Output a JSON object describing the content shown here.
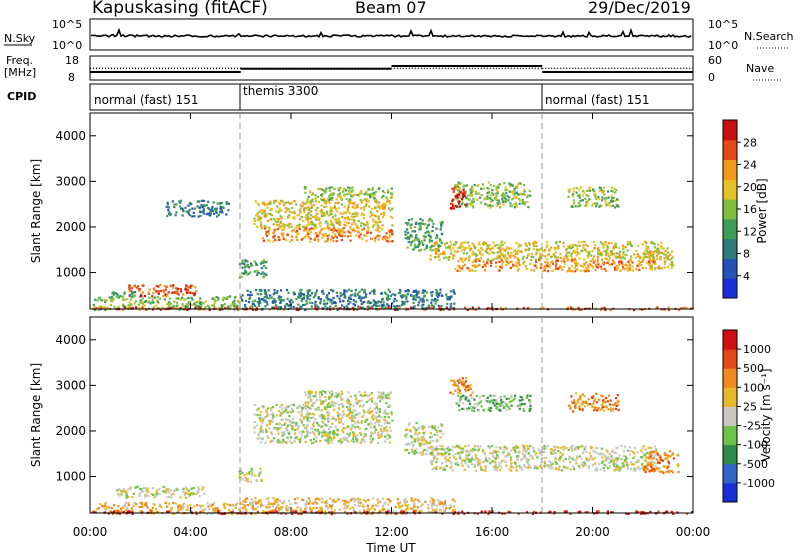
{
  "header": {
    "station": "Kapuskasing (fitACF)",
    "beam": "Beam 07",
    "date": "29/Dec/2019"
  },
  "noise_panel": {
    "left_label": "N.Sky",
    "right_label": "N.Search",
    "left_ticks": [
      "10^5",
      "10^0"
    ],
    "right_ticks": [
      "10^5",
      "10^0"
    ]
  },
  "freq_panel": {
    "left_label_1": "Freq.",
    "left_label_2": "[MHz]",
    "right_label": "Nave",
    "left_ticks": [
      "18",
      "8"
    ],
    "right_ticks": [
      "60",
      "0"
    ]
  },
  "cpid_panel": {
    "label": "CPID",
    "modes": [
      "normal (fast) 151",
      "themis 3300",
      "normal (fast) 151"
    ]
  },
  "power_panel": {
    "ylabel": "Slant Range [km]",
    "yticks": [
      "4000",
      "3000",
      "2000",
      "1000"
    ],
    "colorbar_label": "Power [dB]",
    "colorbar_ticks": [
      "28",
      "24",
      "20",
      "16",
      "12",
      "8",
      "4"
    ],
    "colors": [
      "#1a2ed6",
      "#2453b8",
      "#2f7c7a",
      "#3f9b55",
      "#7fc040",
      "#e6c229",
      "#f29a1e",
      "#e24a1a",
      "#c81010"
    ]
  },
  "velocity_panel": {
    "ylabel": "Slant Range [km]",
    "yticks": [
      "4000",
      "3000",
      "2000",
      "1000"
    ],
    "colorbar_label": "Velocity [m s⁻¹]",
    "colorbar_ticks": [
      "1000",
      "500",
      "100",
      "25",
      "-25",
      "-100",
      "-500",
      "-1000"
    ],
    "colors": [
      "#1a2ed6",
      "#2f66c8",
      "#2e8a4a",
      "#6cc34a",
      "#c8c8c0",
      "#e6b82a",
      "#f08a1e",
      "#e04a1a",
      "#d01010"
    ]
  },
  "xaxis": {
    "label": "Time UT",
    "ticks": [
      "00:00",
      "04:00",
      "08:00",
      "12:00",
      "16:00",
      "20:00",
      "00:00"
    ]
  },
  "chart_data": {
    "type": "heatmap",
    "title": "Kapuskasing (fitACF) Beam 07 29/Dec/2019",
    "xlabel": "Time UT",
    "ylabel": "Slant Range [km]",
    "xlim_hours": [
      0,
      24
    ],
    "ylim_km": [
      200,
      4500
    ],
    "mode_changes_hours": [
      6.0,
      18.0
    ],
    "power_regions": [
      {
        "t0": 0.1,
        "t1": 6.0,
        "r0": 200,
        "r1": 500,
        "level": 4
      },
      {
        "t0": 1.5,
        "t1": 4.2,
        "r0": 500,
        "r1": 750,
        "level": 7
      },
      {
        "t0": 0.8,
        "t1": 1.8,
        "r0": 480,
        "r1": 600,
        "level": 3
      },
      {
        "t0": 3.0,
        "t1": 5.5,
        "r0": 2250,
        "r1": 2600,
        "level": 2
      },
      {
        "t0": 5.9,
        "t1": 7.0,
        "r0": 900,
        "r1": 1300,
        "level": 3
      },
      {
        "t0": 6.0,
        "t1": 14.5,
        "r0": 200,
        "r1": 650,
        "level": 2
      },
      {
        "t0": 6.5,
        "t1": 12.0,
        "r0": 2000,
        "r1": 2600,
        "level": 5
      },
      {
        "t0": 6.8,
        "t1": 12.0,
        "r0": 1700,
        "r1": 2000,
        "level": 6
      },
      {
        "t0": 8.5,
        "t1": 12.0,
        "r0": 2600,
        "r1": 2900,
        "level": 4
      },
      {
        "t0": 12.5,
        "t1": 14.0,
        "r0": 1500,
        "r1": 2200,
        "level": 3
      },
      {
        "t0": 13.5,
        "t1": 23.0,
        "r0": 1300,
        "r1": 1700,
        "level": 5
      },
      {
        "t0": 14.5,
        "t1": 22.5,
        "r0": 1050,
        "r1": 1300,
        "level": 6
      },
      {
        "t0": 14.5,
        "t1": 17.5,
        "r0": 2450,
        "r1": 3000,
        "level": 4
      },
      {
        "t0": 14.3,
        "t1": 14.9,
        "r0": 2400,
        "r1": 2900,
        "level": 8
      },
      {
        "t0": 19.0,
        "t1": 21.0,
        "r0": 2450,
        "r1": 2900,
        "level": 4
      },
      {
        "t0": 22.0,
        "t1": 23.2,
        "r0": 1100,
        "r1": 1500,
        "level": 5
      },
      {
        "t0": 0.0,
        "t1": 24.0,
        "r0": 200,
        "r1": 260,
        "level": 7
      }
    ],
    "velocity_regions": [
      {
        "t0": 0.2,
        "t1": 6.0,
        "r0": 200,
        "r1": 450,
        "level": 5
      },
      {
        "t0": 1.0,
        "t1": 4.5,
        "r0": 550,
        "r1": 800,
        "level": 4
      },
      {
        "t0": 5.9,
        "t1": 6.8,
        "r0": 900,
        "r1": 1200,
        "level": 4
      },
      {
        "t0": 6.0,
        "t1": 14.5,
        "r0": 200,
        "r1": 550,
        "level": 5
      },
      {
        "t0": 6.5,
        "t1": 12.0,
        "r0": 1750,
        "r1": 2600,
        "level": 4
      },
      {
        "t0": 8.5,
        "t1": 12.0,
        "r0": 2600,
        "r1": 2900,
        "level": 4
      },
      {
        "t0": 12.5,
        "t1": 14.0,
        "r0": 1500,
        "r1": 2200,
        "level": 4
      },
      {
        "t0": 13.5,
        "t1": 22.5,
        "r0": 1150,
        "r1": 1700,
        "level": 4
      },
      {
        "t0": 14.5,
        "t1": 17.5,
        "r0": 2450,
        "r1": 2800,
        "level": 3
      },
      {
        "t0": 14.3,
        "t1": 15.2,
        "r0": 2800,
        "r1": 3200,
        "level": 6
      },
      {
        "t0": 19.0,
        "t1": 21.0,
        "r0": 2450,
        "r1": 2850,
        "level": 6
      },
      {
        "t0": 22.0,
        "t1": 23.4,
        "r0": 1100,
        "r1": 1600,
        "level": 6
      },
      {
        "t0": 0.0,
        "t1": 24.0,
        "r0": 200,
        "r1": 260,
        "level": 8
      }
    ],
    "noise_series": {
      "sky_level": 0.8,
      "search_level": 0.85
    },
    "freq_series": [
      {
        "name": "Freq.",
        "segments": [
          {
            "t0": 0,
            "t1": 6,
            "v": 12
          },
          {
            "t0": 6,
            "t1": 18,
            "v": 12
          },
          {
            "t0": 18,
            "t1": 24,
            "v": 12
          }
        ]
      },
      {
        "name": "Nave",
        "segments": [
          {
            "t0": 0,
            "t1": 6,
            "v": 20
          },
          {
            "t0": 6,
            "t1": 12,
            "v": 28
          },
          {
            "t0": 12,
            "t1": 18,
            "v": 35
          },
          {
            "t0": 18,
            "t1": 24,
            "v": 20
          }
        ]
      }
    ]
  }
}
